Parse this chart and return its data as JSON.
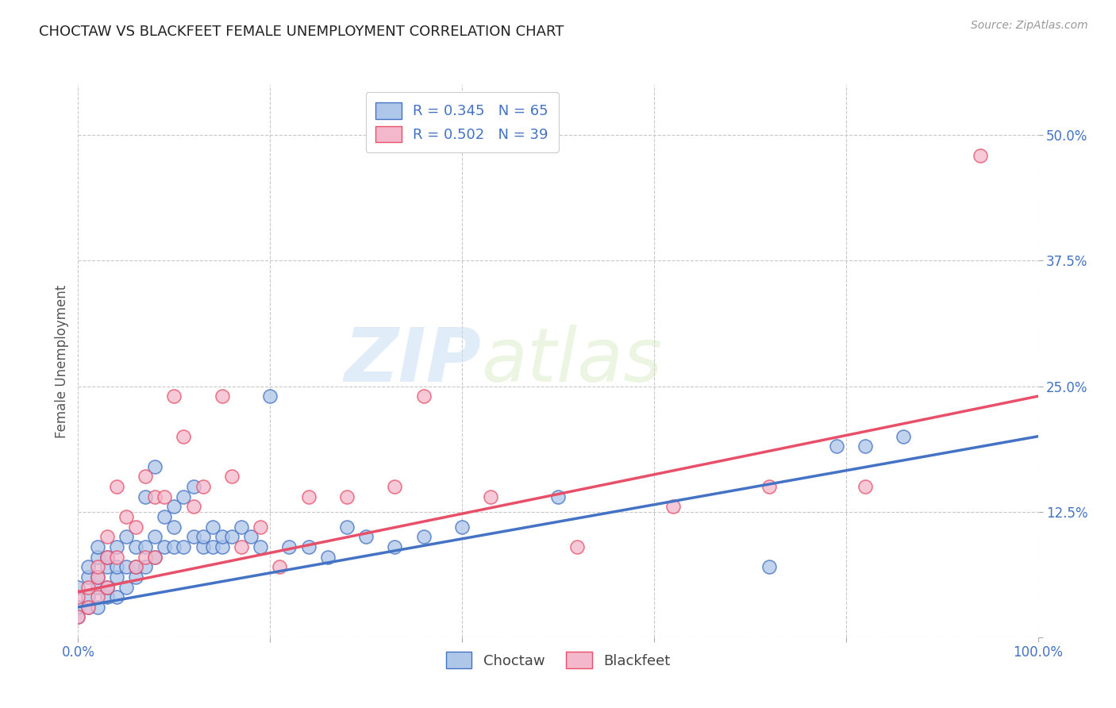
{
  "title": "CHOCTAW VS BLACKFEET FEMALE UNEMPLOYMENT CORRELATION CHART",
  "source": "Source: ZipAtlas.com",
  "ylabel": "Female Unemployment",
  "xlim": [
    0,
    1.0
  ],
  "ylim": [
    0.0,
    0.55
  ],
  "yticks": [
    0.0,
    0.125,
    0.25,
    0.375,
    0.5
  ],
  "ytick_labels": [
    "",
    "12.5%",
    "25.0%",
    "37.5%",
    "50.0%"
  ],
  "xtick_positions": [
    0.0,
    0.2,
    0.4,
    0.6,
    0.8,
    1.0
  ],
  "xtick_labels": [
    "0.0%",
    "",
    "",
    "",
    "",
    "100.0%"
  ],
  "background_color": "#ffffff",
  "grid_color": "#c8c8c8",
  "choctaw_color": "#aec6e8",
  "blackfeet_color": "#f4b8cc",
  "choctaw_line_color": "#4472c4",
  "blackfeet_line_color": "#e8506a",
  "choctaw_R": 0.345,
  "choctaw_N": 65,
  "blackfeet_R": 0.502,
  "blackfeet_N": 39,
  "watermark_zip": "ZIP",
  "watermark_atlas": "atlas",
  "choctaw_x": [
    0.0,
    0.0,
    0.0,
    0.01,
    0.01,
    0.01,
    0.01,
    0.02,
    0.02,
    0.02,
    0.02,
    0.02,
    0.03,
    0.03,
    0.03,
    0.03,
    0.04,
    0.04,
    0.04,
    0.04,
    0.05,
    0.05,
    0.05,
    0.06,
    0.06,
    0.06,
    0.07,
    0.07,
    0.07,
    0.08,
    0.08,
    0.08,
    0.09,
    0.09,
    0.1,
    0.1,
    0.1,
    0.11,
    0.11,
    0.12,
    0.12,
    0.13,
    0.13,
    0.14,
    0.14,
    0.15,
    0.15,
    0.16,
    0.17,
    0.18,
    0.19,
    0.2,
    0.22,
    0.24,
    0.26,
    0.28,
    0.3,
    0.33,
    0.36,
    0.4,
    0.5,
    0.72,
    0.79,
    0.82,
    0.86
  ],
  "choctaw_y": [
    0.02,
    0.03,
    0.05,
    0.03,
    0.04,
    0.06,
    0.07,
    0.03,
    0.05,
    0.06,
    0.08,
    0.09,
    0.04,
    0.05,
    0.07,
    0.08,
    0.04,
    0.06,
    0.07,
    0.09,
    0.05,
    0.07,
    0.1,
    0.06,
    0.07,
    0.09,
    0.07,
    0.09,
    0.14,
    0.08,
    0.1,
    0.17,
    0.09,
    0.12,
    0.09,
    0.11,
    0.13,
    0.09,
    0.14,
    0.1,
    0.15,
    0.09,
    0.1,
    0.09,
    0.11,
    0.09,
    0.1,
    0.1,
    0.11,
    0.1,
    0.09,
    0.24,
    0.09,
    0.09,
    0.08,
    0.11,
    0.1,
    0.09,
    0.1,
    0.11,
    0.14,
    0.07,
    0.19,
    0.19,
    0.2
  ],
  "blackfeet_x": [
    0.0,
    0.0,
    0.01,
    0.01,
    0.02,
    0.02,
    0.02,
    0.03,
    0.03,
    0.03,
    0.04,
    0.04,
    0.05,
    0.06,
    0.06,
    0.07,
    0.07,
    0.08,
    0.08,
    0.09,
    0.1,
    0.11,
    0.12,
    0.13,
    0.15,
    0.16,
    0.17,
    0.19,
    0.21,
    0.24,
    0.28,
    0.33,
    0.36,
    0.43,
    0.52,
    0.62,
    0.72,
    0.82,
    0.94
  ],
  "blackfeet_y": [
    0.02,
    0.04,
    0.03,
    0.05,
    0.04,
    0.06,
    0.07,
    0.05,
    0.08,
    0.1,
    0.08,
    0.15,
    0.12,
    0.07,
    0.11,
    0.08,
    0.16,
    0.08,
    0.14,
    0.14,
    0.24,
    0.2,
    0.13,
    0.15,
    0.24,
    0.16,
    0.09,
    0.11,
    0.07,
    0.14,
    0.14,
    0.15,
    0.24,
    0.14,
    0.09,
    0.13,
    0.15,
    0.15,
    0.48
  ],
  "choctaw_trend_x0": 0.0,
  "choctaw_trend_y0": 0.03,
  "choctaw_trend_x1": 1.0,
  "choctaw_trend_y1": 0.2,
  "blackfeet_trend_x0": 0.0,
  "blackfeet_trend_y0": 0.045,
  "blackfeet_trend_x1": 1.0,
  "blackfeet_trend_y1": 0.24
}
